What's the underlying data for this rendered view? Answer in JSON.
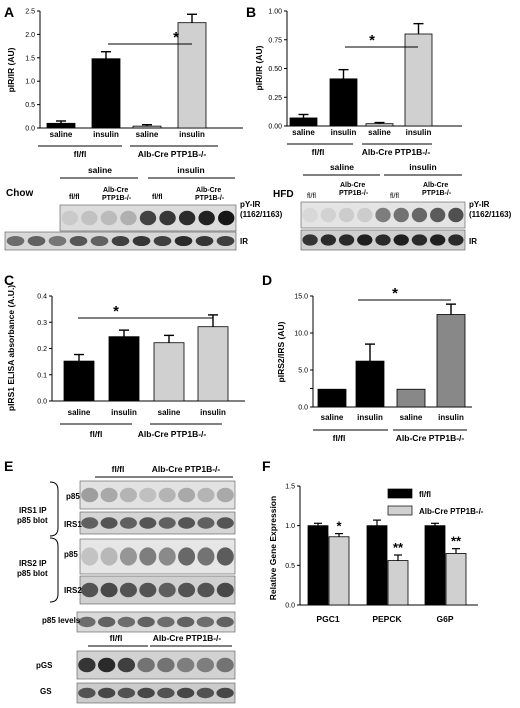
{
  "panels": {
    "A": "A",
    "B": "B",
    "C": "C",
    "D": "D",
    "E": "E",
    "F": "F"
  },
  "star": "*",
  "double_star": "**",
  "chart_data": [
    {
      "panel": "A",
      "type": "bar",
      "ylabel": "pIR/IR (AU)",
      "ylim": [
        0,
        2.5
      ],
      "yticks": [
        "0.0",
        "0.5",
        "1.0",
        "1.5",
        "2.0",
        "2.5"
      ],
      "categories": [
        "saline",
        "insulin",
        "saline",
        "insulin"
      ],
      "groups": [
        "fl/fl",
        "Alb-Cre PTP1B-/-"
      ],
      "values": [
        0.1,
        1.48,
        0.04,
        2.25
      ],
      "errors": [
        0.05,
        0.15,
        0.03,
        0.18
      ],
      "colors": [
        "#000000",
        "#000000",
        "#d0d0d0",
        "#d0d0d0"
      ]
    },
    {
      "panel": "B",
      "type": "bar",
      "ylabel": "pIR/IR (AU)",
      "ylim": [
        0,
        1.0
      ],
      "yticks": [
        "0.00",
        "0.25",
        "0.50",
        "0.75",
        "1.00"
      ],
      "categories": [
        "saline",
        "insulin",
        "saline",
        "insulin"
      ],
      "groups": [
        "fl/fl",
        "Alb-Cre PTP1B-/-"
      ],
      "values": [
        0.07,
        0.41,
        0.02,
        0.8
      ],
      "errors": [
        0.03,
        0.08,
        0.01,
        0.09
      ],
      "colors": [
        "#000000",
        "#000000",
        "#d0d0d0",
        "#d0d0d0"
      ]
    },
    {
      "panel": "C",
      "type": "bar",
      "ylabel": "pIRS1 ELISA absorbance (A.U.)",
      "ylim": [
        0,
        0.4
      ],
      "yticks": [
        "0.0",
        "0.1",
        "0.2",
        "0.3",
        "0.4"
      ],
      "categories": [
        "saline",
        "insulin",
        "saline",
        "insulin"
      ],
      "groups": [
        "fl/fl",
        "Alb-Cre PTP1B-/-"
      ],
      "values": [
        0.152,
        0.245,
        0.222,
        0.283
      ],
      "errors": [
        0.025,
        0.025,
        0.028,
        0.045
      ],
      "colors": [
        "#000000",
        "#000000",
        "#d0d0d0",
        "#d0d0d0"
      ]
    },
    {
      "panel": "D",
      "type": "bar",
      "ylabel": "pIRS2/IRS (AU)",
      "ylim": [
        0,
        15
      ],
      "yticks": [
        "0.0",
        "5.0",
        "10.0",
        "15.0"
      ],
      "extra_tick": "2.5",
      "categories": [
        "saline",
        "insulin",
        "saline",
        "insulin"
      ],
      "groups": [
        "fl/fl",
        "Alb-Cre PTP1B-/-"
      ],
      "values": [
        2.4,
        6.2,
        2.4,
        12.5
      ],
      "errors": [
        0,
        2.3,
        0,
        1.4
      ],
      "colors": [
        "#000000",
        "#000000",
        "#888888",
        "#888888"
      ]
    },
    {
      "panel": "F",
      "type": "bar",
      "ylabel": "Relative Gene Expression",
      "ylim": [
        0,
        1.5
      ],
      "yticks": [
        "0.0",
        "0.5",
        "1.0",
        "1.5"
      ],
      "categories": [
        "PGC1",
        "PEPCK",
        "G6P"
      ],
      "series": [
        {
          "name": "fl/fl",
          "values": [
            1.0,
            1.0,
            1.0
          ],
          "errors": [
            0.03,
            0.07,
            0.03
          ],
          "color": "#000000"
        },
        {
          "name": "Alb-Cre PTP1B-/-",
          "values": [
            0.86,
            0.56,
            0.65
          ],
          "errors": [
            0.04,
            0.07,
            0.06
          ],
          "color": "#d0d0d0"
        }
      ],
      "legend": "top-right",
      "sig": [
        "*",
        "**",
        "**"
      ]
    }
  ],
  "blots": {
    "chow": {
      "diet": "Chow",
      "groups": [
        "saline",
        "insulin"
      ],
      "lanes": [
        "fl/fl",
        "Alb-Cre PTP1B-/-",
        "fl/fl",
        "Alb-Cre PTP1B-/-"
      ],
      "bands": [
        "pY-IR (1162/1163)",
        "IR"
      ]
    },
    "hfd": {
      "diet": "HFD",
      "groups": [
        "saline",
        "insulin"
      ],
      "lanes": [
        "fl/fl",
        "Alb-Cre PTP1B-/-",
        "fl/fl",
        "Alb-Cre PTP1B-/-"
      ],
      "bands": [
        "pY-IR (1162/1163)",
        "IR"
      ]
    },
    "e": {
      "genotypes": [
        "fl/fl",
        "Alb-Cre PTP1B-/-"
      ],
      "ip1": "IRS1 IP p85 blot",
      "ip2": "IRS2 IP p85 blot",
      "bands": [
        "p85",
        "IRS1",
        "p85",
        "IRS2",
        "p85 levels",
        "pGS",
        "GS"
      ]
    }
  }
}
